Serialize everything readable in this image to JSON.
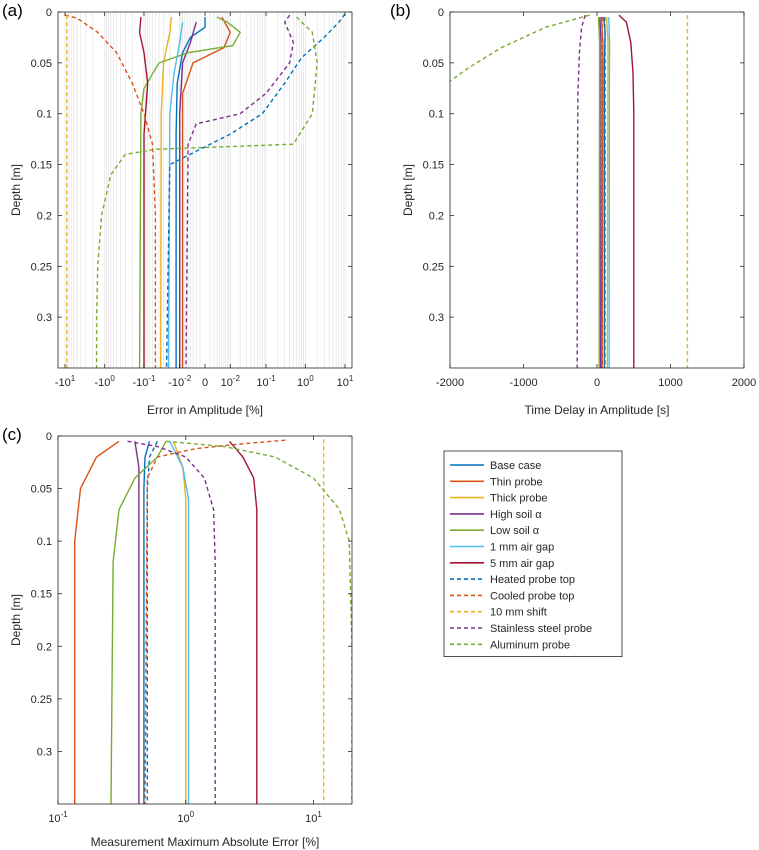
{
  "legend": [
    {
      "name": "Base case",
      "color": "#0072BD",
      "dashed": false
    },
    {
      "name": "Thin probe",
      "color": "#D95319",
      "dashed": false
    },
    {
      "name": "Thick probe",
      "color": "#EDB120",
      "dashed": false
    },
    {
      "name": "High soil α",
      "color": "#7E2F8E",
      "dashed": false
    },
    {
      "name": "Low soil α",
      "color": "#77AC30",
      "dashed": false
    },
    {
      "name": "1 mm air gap",
      "color": "#4DBEEE",
      "dashed": false
    },
    {
      "name": "5 mm air gap",
      "color": "#A2142F",
      "dashed": false
    },
    {
      "name": "Heated probe top",
      "color": "#0072BD",
      "dashed": true
    },
    {
      "name": "Cooled probe top",
      "color": "#D95319",
      "dashed": true
    },
    {
      "name": "10 mm shift",
      "color": "#EDB120",
      "dashed": true
    },
    {
      "name": "Stainless steel probe",
      "color": "#7E2F8E",
      "dashed": true
    },
    {
      "name": "Aluminum probe",
      "color": "#77AC30",
      "dashed": true
    }
  ],
  "chart_data": [
    {
      "panel": "(a)",
      "type": "line",
      "xlabel": "Error in Amplitude [%]",
      "ylabel": "Depth [m]",
      "x_scale": "symlog",
      "xlim": [
        -15,
        15
      ],
      "ylim": [
        0,
        0.35
      ],
      "y_reversed": true,
      "xticks": [
        {
          "v": -10,
          "label": "-10",
          "exp": "1"
        },
        {
          "v": -1,
          "label": "-10",
          "exp": "0"
        },
        {
          "v": -0.1,
          "label": "-10",
          "exp": "-1"
        },
        {
          "v": -0.01,
          "label": "-10",
          "exp": "-2"
        },
        {
          "v": 0,
          "label": "0",
          "exp": ""
        },
        {
          "v": 0.01,
          "label": "10",
          "exp": "-2"
        },
        {
          "v": 0.1,
          "label": "10",
          "exp": "-1"
        },
        {
          "v": 1,
          "label": "10",
          "exp": "0"
        },
        {
          "v": 10,
          "label": "10",
          "exp": "1"
        }
      ],
      "yticks": [
        "0",
        "0.05",
        "0.1",
        "0.15",
        "0.2",
        "0.25",
        "0.3"
      ],
      "grid": "x minor",
      "series": [
        {
          "name": "Base case",
          "points": [
            [
              0.0,
              0.005
            ],
            [
              0.0,
              0.015
            ],
            [
              -0.004,
              0.025
            ],
            [
              -0.008,
              0.04
            ],
            [
              -0.012,
              0.07
            ],
            [
              -0.013,
              0.12
            ],
            [
              -0.013,
              0.35
            ]
          ]
        },
        {
          "name": "Thin probe",
          "points": [
            [
              0.005,
              0.005
            ],
            [
              0.01,
              0.02
            ],
            [
              0.006,
              0.035
            ],
            [
              -0.003,
              0.05
            ],
            [
              -0.008,
              0.08
            ],
            [
              -0.008,
              0.35
            ]
          ]
        },
        {
          "name": "Thick probe",
          "points": [
            [
              -0.018,
              0.005
            ],
            [
              -0.02,
              0.02
            ],
            [
              -0.03,
              0.05
            ],
            [
              -0.035,
              0.1
            ],
            [
              -0.036,
              0.35
            ]
          ]
        },
        {
          "name": "High soil α",
          "points": [
            [
              -0.002,
              0.01
            ],
            [
              -0.004,
              0.03
            ],
            [
              -0.008,
              0.05
            ],
            [
              -0.01,
              0.1
            ],
            [
              -0.01,
              0.35
            ]
          ]
        },
        {
          "name": "Low soil α",
          "points": [
            [
              0.003,
              0.005
            ],
            [
              0.008,
              0.01
            ],
            [
              0.02,
              0.02
            ],
            [
              0.012,
              0.033
            ],
            [
              -0.005,
              0.04
            ],
            [
              -0.04,
              0.05
            ],
            [
              -0.1,
              0.075
            ],
            [
              -0.12,
              0.1
            ],
            [
              -0.13,
              0.35
            ]
          ]
        },
        {
          "name": "1 mm air gap",
          "points": [
            [
              -0.008,
              0.01
            ],
            [
              -0.01,
              0.03
            ],
            [
              -0.015,
              0.06
            ],
            [
              -0.02,
              0.1
            ],
            [
              -0.022,
              0.35
            ]
          ]
        },
        {
          "name": "5 mm air gap",
          "points": [
            [
              -0.12,
              0.005
            ],
            [
              -0.13,
              0.02
            ],
            [
              -0.1,
              0.04
            ],
            [
              -0.08,
              0.07
            ],
            [
              -0.1,
              0.12
            ],
            [
              -0.1,
              0.35
            ]
          ]
        },
        {
          "name": "Heated probe top",
          "points": [
            [
              10,
              0.002
            ],
            [
              7,
              0.01
            ],
            [
              3,
              0.025
            ],
            [
              0.8,
              0.045
            ],
            [
              0.3,
              0.07
            ],
            [
              0.08,
              0.1
            ],
            [
              0.01,
              0.12
            ],
            [
              -0.02,
              0.15
            ],
            [
              -0.025,
              0.35
            ]
          ]
        },
        {
          "name": "Cooled probe top",
          "points": [
            [
              -10,
              0.003
            ],
            [
              -5,
              0.006
            ],
            [
              -1.5,
              0.02
            ],
            [
              -0.5,
              0.04
            ],
            [
              -0.2,
              0.07
            ],
            [
              -0.1,
              0.1
            ],
            [
              -0.06,
              0.13
            ],
            [
              -0.05,
              0.2
            ],
            [
              -0.05,
              0.35
            ]
          ]
        },
        {
          "name": "10 mm shift",
          "points": [
            [
              -9,
              0.003
            ],
            [
              -9,
              0.35
            ]
          ]
        },
        {
          "name": "Stainless steel probe",
          "points": [
            [
              0.4,
              0.003
            ],
            [
              0.3,
              0.01
            ],
            [
              0.5,
              0.03
            ],
            [
              0.4,
              0.05
            ],
            [
              0.1,
              0.08
            ],
            [
              0.02,
              0.1
            ],
            [
              -0.002,
              0.11
            ],
            [
              -0.005,
              0.13
            ],
            [
              -0.006,
              0.35
            ]
          ]
        },
        {
          "name": "Aluminum probe",
          "points": [
            [
              0.6,
              0.005
            ],
            [
              1.5,
              0.02
            ],
            [
              2,
              0.05
            ],
            [
              1.5,
              0.1
            ],
            [
              0.5,
              0.13
            ],
            [
              -0.05,
              0.135
            ],
            [
              -0.3,
              0.14
            ],
            [
              -0.7,
              0.16
            ],
            [
              -1.2,
              0.2
            ],
            [
              -1.5,
              0.25
            ],
            [
              -1.6,
              0.3
            ],
            [
              -1.6,
              0.35
            ]
          ]
        }
      ]
    },
    {
      "panel": "(b)",
      "type": "line",
      "xlabel": "Time Delay in Amplitude [s]",
      "ylabel": "Depth [m]",
      "xlim": [
        -2000,
        2000
      ],
      "ylim": [
        0,
        0.35
      ],
      "y_reversed": true,
      "xticks": [
        "-2000",
        "-1000",
        "0",
        "1000",
        "2000"
      ],
      "yticks": [
        "0",
        "0.05",
        "0.1",
        "0.15",
        "0.2",
        "0.25",
        "0.3"
      ],
      "series": [
        {
          "name": "Base case",
          "points": [
            [
              90,
              0.005
            ],
            [
              110,
              0.02
            ],
            [
              100,
              0.05
            ],
            [
              100,
              0.35
            ]
          ]
        },
        {
          "name": "Thin probe",
          "points": [
            [
              60,
              0.005
            ],
            [
              80,
              0.03
            ],
            [
              70,
              0.35
            ]
          ]
        },
        {
          "name": "Thick probe",
          "points": [
            [
              130,
              0.005
            ],
            [
              150,
              0.03
            ],
            [
              140,
              0.35
            ]
          ]
        },
        {
          "name": "High soil α",
          "points": [
            [
              40,
              0.005
            ],
            [
              55,
              0.03
            ],
            [
              50,
              0.35
            ]
          ]
        },
        {
          "name": "Low soil α",
          "points": [
            [
              20,
              0.005
            ],
            [
              35,
              0.03
            ],
            [
              30,
              0.35
            ]
          ]
        },
        {
          "name": "1 mm air gap",
          "points": [
            [
              160,
              0.005
            ],
            [
              170,
              0.03
            ],
            [
              165,
              0.35
            ]
          ]
        },
        {
          "name": "5 mm air gap",
          "points": [
            [
              300,
              0.003
            ],
            [
              400,
              0.01
            ],
            [
              460,
              0.03
            ],
            [
              490,
              0.06
            ],
            [
              500,
              0.1
            ],
            [
              500,
              0.35
            ]
          ]
        },
        {
          "name": "Heated probe top",
          "points": [
            [
              105,
              0.005
            ],
            [
              110,
              0.03
            ],
            [
              108,
              0.35
            ]
          ]
        },
        {
          "name": "Cooled probe top",
          "points": [
            [
              70,
              0.005
            ],
            [
              75,
              0.03
            ],
            [
              72,
              0.35
            ]
          ]
        },
        {
          "name": "10 mm shift",
          "points": [
            [
              1230,
              0.003
            ],
            [
              1230,
              0.35
            ]
          ]
        },
        {
          "name": "Stainless steel probe",
          "points": [
            [
              -160,
              0.003
            ],
            [
              -210,
              0.015
            ],
            [
              -240,
              0.04
            ],
            [
              -260,
              0.08
            ],
            [
              -270,
              0.2
            ],
            [
              -270,
              0.35
            ]
          ]
        },
        {
          "name": "Aluminum probe",
          "points": [
            [
              -100,
              0.003
            ],
            [
              -700,
              0.015
            ],
            [
              -1300,
              0.035
            ],
            [
              -1750,
              0.055
            ],
            [
              -2000,
              0.068
            ]
          ]
        }
      ]
    },
    {
      "panel": "(c)",
      "type": "line",
      "xlabel": "Measurement Maximum Absolute Error [%]",
      "ylabel": "Depth [m]",
      "x_scale": "log",
      "xlim": [
        0.1,
        20
      ],
      "ylim": [
        0,
        0.35
      ],
      "y_reversed": true,
      "xticks": [
        {
          "v": 0.1,
          "label": "10",
          "exp": "-1"
        },
        {
          "v": 1,
          "label": "10",
          "exp": "0"
        },
        {
          "v": 10,
          "label": "10",
          "exp": "1"
        }
      ],
      "yticks": [
        "0",
        "0.05",
        "0.1",
        "0.15",
        "0.2",
        "0.25",
        "0.3"
      ],
      "series": [
        {
          "name": "Base case",
          "points": [
            [
              0.52,
              0.005
            ],
            [
              0.48,
              0.02
            ],
            [
              0.47,
              0.05
            ],
            [
              0.47,
              0.35
            ]
          ]
        },
        {
          "name": "Thin probe",
          "points": [
            [
              0.3,
              0.005
            ],
            [
              0.2,
              0.02
            ],
            [
              0.15,
              0.05
            ],
            [
              0.135,
              0.1
            ],
            [
              0.135,
              0.35
            ]
          ]
        },
        {
          "name": "Thick probe",
          "points": [
            [
              0.8,
              0.005
            ],
            [
              0.95,
              0.03
            ],
            [
              1.0,
              0.06
            ],
            [
              1.0,
              0.35
            ]
          ]
        },
        {
          "name": "High soil α",
          "points": [
            [
              0.4,
              0.005
            ],
            [
              0.43,
              0.03
            ],
            [
              0.43,
              0.35
            ]
          ]
        },
        {
          "name": "Low soil α",
          "points": [
            [
              0.7,
              0.005
            ],
            [
              0.6,
              0.02
            ],
            [
              0.4,
              0.04
            ],
            [
              0.3,
              0.07
            ],
            [
              0.27,
              0.12
            ],
            [
              0.26,
              0.35
            ]
          ]
        },
        {
          "name": "1 mm air gap",
          "points": [
            [
              0.75,
              0.005
            ],
            [
              0.95,
              0.03
            ],
            [
              1.05,
              0.06
            ],
            [
              1.05,
              0.35
            ]
          ]
        },
        {
          "name": "5 mm air gap",
          "points": [
            [
              2.2,
              0.005
            ],
            [
              2.8,
              0.02
            ],
            [
              3.4,
              0.04
            ],
            [
              3.6,
              0.07
            ],
            [
              3.6,
              0.35
            ]
          ]
        },
        {
          "name": "Heated probe top",
          "points": [
            [
              0.6,
              0.005
            ],
            [
              0.52,
              0.02
            ],
            [
              0.5,
              0.05
            ],
            [
              0.5,
              0.35
            ]
          ]
        },
        {
          "name": "Cooled probe top",
          "points": [
            [
              6,
              0.004
            ],
            [
              3,
              0.007
            ],
            [
              1.2,
              0.012
            ],
            [
              0.6,
              0.02
            ],
            [
              0.5,
              0.04
            ],
            [
              0.48,
              0.35
            ]
          ]
        },
        {
          "name": "10 mm shift",
          "points": [
            [
              12,
              0.003
            ],
            [
              12,
              0.35
            ]
          ]
        },
        {
          "name": "Stainless steel probe",
          "points": [
            [
              0.35,
              0.005
            ],
            [
              0.6,
              0.01
            ],
            [
              1.0,
              0.02
            ],
            [
              1.4,
              0.04
            ],
            [
              1.65,
              0.07
            ],
            [
              1.7,
              0.12
            ],
            [
              1.7,
              0.35
            ]
          ]
        },
        {
          "name": "Aluminum probe",
          "points": [
            [
              0.7,
              0.005
            ],
            [
              2,
              0.01
            ],
            [
              5,
              0.02
            ],
            [
              10,
              0.04
            ],
            [
              16,
              0.07
            ],
            [
              19,
              0.1
            ],
            [
              20,
              0.2
            ],
            [
              20,
              0.35
            ]
          ]
        }
      ]
    }
  ]
}
